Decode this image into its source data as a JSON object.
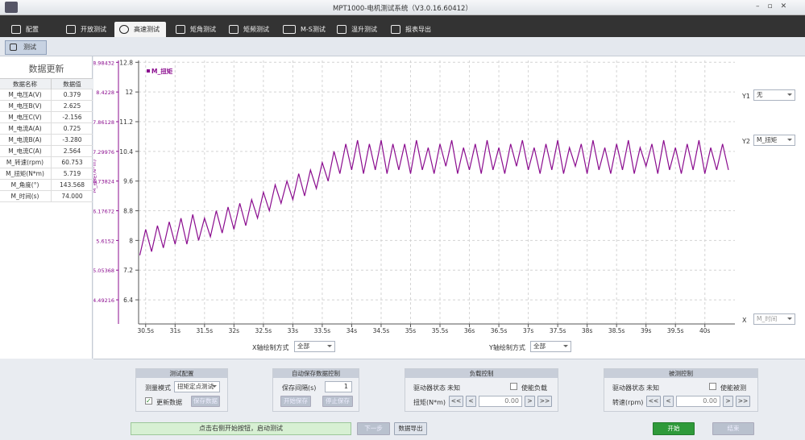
{
  "window": {
    "title": "MPT1000-电机测试系统（V3.0.16.60412）"
  },
  "tabs": [
    "配置",
    "开放测试",
    "高速测试",
    "矩角测试",
    "矩频测试",
    "M-S测试",
    "温升测试",
    "报表导出"
  ],
  "toolbar": {
    "button": "测试"
  },
  "data_panel": {
    "title": "数据更新",
    "headers": [
      "数据名称",
      "数据值"
    ],
    "rows": [
      [
        "M_电压A(V)",
        "0.379"
      ],
      [
        "M_电压B(V)",
        "2.625"
      ],
      [
        "M_电压C(V)",
        "-2.156"
      ],
      [
        "M_电流A(A)",
        "0.725"
      ],
      [
        "M_电流B(A)",
        "-3.280"
      ],
      [
        "M_电流C(A)",
        "2.564"
      ],
      [
        "M_转速(rpm)",
        "60.753"
      ],
      [
        "M_扭矩(N*m)",
        "5.719"
      ],
      [
        "M_角度(°)",
        "143.568"
      ],
      [
        "M_时间(s)",
        "74.000"
      ]
    ]
  },
  "chart_data": {
    "type": "line",
    "y2_label": "M_扭矩(N*m)",
    "grid": true,
    "xlim": [
      30.38,
      40.51
    ],
    "ylim": [
      5.75,
      12.85
    ],
    "y2lim": [
      4.036,
      9.0197
    ],
    "xticks": [
      {
        "value": 30.5,
        "label": "30.5s"
      },
      {
        "value": 31,
        "label": "31s"
      },
      {
        "value": 31.5,
        "label": "31.5s"
      },
      {
        "value": 32,
        "label": "32s"
      },
      {
        "value": 32.5,
        "label": "32.5s"
      },
      {
        "value": 33,
        "label": "33s"
      },
      {
        "value": 33.5,
        "label": "33.5s"
      },
      {
        "value": 34,
        "label": "34s"
      },
      {
        "value": 34.5,
        "label": "34.5s"
      },
      {
        "value": 35,
        "label": "35s"
      },
      {
        "value": 35.5,
        "label": "35.5s"
      },
      {
        "value": 36,
        "label": "36s"
      },
      {
        "value": 36.5,
        "label": "36.5s"
      },
      {
        "value": 37,
        "label": "37s"
      },
      {
        "value": 37.5,
        "label": "37.5s"
      },
      {
        "value": 38,
        "label": "38s"
      },
      {
        "value": 38.5,
        "label": "38.5s"
      },
      {
        "value": 39,
        "label": "39s"
      },
      {
        "value": 39.5,
        "label": "39.5s"
      },
      {
        "value": 40,
        "label": "40s"
      }
    ],
    "yticks": [
      6.4,
      7.2,
      8,
      8.8,
      9.6,
      10.4,
      11.2,
      12,
      12.8
    ],
    "y2ticks": [
      4.49216,
      5.05368,
      5.6152,
      6.17672,
      6.73824,
      7.29976,
      7.86128,
      8.4228,
      8.98432
    ],
    "x": [
      30.4,
      30.5,
      30.6,
      30.7,
      30.8,
      30.9,
      31.0,
      31.1,
      31.2,
      31.3,
      31.4,
      31.5,
      31.6,
      31.7,
      31.8,
      31.9,
      32.0,
      32.1,
      32.2,
      32.3,
      32.4,
      32.5,
      32.6,
      32.7,
      32.8,
      32.9,
      33.0,
      33.1,
      33.2,
      33.3,
      33.4,
      33.5,
      33.6,
      33.7,
      33.8,
      33.9,
      34.0,
      34.1,
      34.2,
      34.3,
      34.4,
      34.5,
      34.6,
      34.7,
      34.8,
      34.9,
      35.0,
      35.1,
      35.2,
      35.3,
      35.4,
      35.5,
      35.6,
      35.7,
      35.8,
      35.9,
      36.0,
      36.1,
      36.2,
      36.3,
      36.4,
      36.5,
      36.6,
      36.7,
      36.8,
      36.9,
      37.0,
      37.1,
      37.2,
      37.3,
      37.4,
      37.5,
      37.6,
      37.7,
      37.8,
      37.9,
      38.0,
      38.1,
      38.2,
      38.3,
      38.4,
      38.5,
      38.6,
      38.7,
      38.8,
      38.9,
      39.0,
      39.1,
      39.2,
      39.3,
      39.4,
      39.5,
      39.6,
      39.7,
      39.8,
      39.9,
      40.0,
      40.1,
      40.2,
      40.3,
      40.4
    ],
    "series": [
      {
        "name": "M_扭矩",
        "color": "#8b0d8f",
        "values": [
          7.6,
          8.3,
          7.7,
          8.4,
          7.8,
          8.5,
          7.9,
          8.6,
          7.9,
          8.7,
          8.0,
          8.6,
          8.1,
          8.8,
          8.2,
          8.9,
          8.3,
          9.0,
          8.4,
          9.1,
          8.6,
          9.3,
          8.8,
          9.5,
          9.0,
          9.6,
          9.1,
          9.8,
          9.2,
          9.9,
          9.4,
          10.1,
          9.6,
          10.4,
          9.8,
          10.6,
          9.9,
          10.7,
          9.8,
          10.6,
          9.9,
          10.7,
          9.8,
          10.6,
          9.9,
          10.6,
          9.8,
          10.7,
          9.9,
          10.5,
          9.8,
          10.6,
          10.0,
          10.7,
          9.8,
          10.5,
          9.9,
          10.6,
          9.8,
          10.7,
          9.9,
          10.5,
          9.8,
          10.6,
          10.0,
          10.7,
          9.9,
          10.5,
          9.8,
          10.6,
          9.9,
          10.7,
          9.8,
          10.5,
          10.0,
          10.6,
          9.8,
          10.7,
          9.9,
          10.5,
          9.8,
          10.6,
          9.9,
          10.7,
          9.8,
          10.5,
          10.0,
          10.6,
          9.8,
          10.7,
          9.9,
          10.5,
          9.8,
          10.6,
          9.9,
          10.7,
          9.8,
          10.5,
          9.9,
          10.6,
          9.9
        ]
      }
    ]
  },
  "right_controls": {
    "y1_label": "Y1",
    "y1_value": "无",
    "y2_label": "Y2",
    "y2_value": "M_扭矩",
    "x_label": "X",
    "x_value": "M_时间"
  },
  "axis_controls": {
    "x_label": "X轴绘制方式",
    "x_value": "全部",
    "y_label": "Y轴绘制方式",
    "y_value": "全部"
  },
  "test_config": {
    "title": "测试配置",
    "mode_label": "测量模式",
    "mode_value": "扭矩定点测试",
    "update_label": "更新数据",
    "save_button": "保存数据"
  },
  "auto_save": {
    "title": "自动保存数据控制",
    "interval_label": "保存间隔(s)",
    "interval_value": "1",
    "start_button": "开始保存",
    "stop_button": "停止保存"
  },
  "load_control": {
    "title": "负载控制",
    "status_label": "驱动器状态",
    "status_value": "未知",
    "enable_label": "使能负载",
    "torque_label": "扭矩(N*m)",
    "value": "0.00"
  },
  "dut_control": {
    "title": "被测控制",
    "status_label": "驱动器状态",
    "status_value": "未知",
    "enable_label": "使能被测",
    "speed_label": "转速(rpm)",
    "value": "0.00"
  },
  "footer": {
    "status": "点击右侧开始按钮，启动测试",
    "next_button": "下一步",
    "export_button": "数据导出",
    "start_button": "开始",
    "stop_button": "结束"
  }
}
